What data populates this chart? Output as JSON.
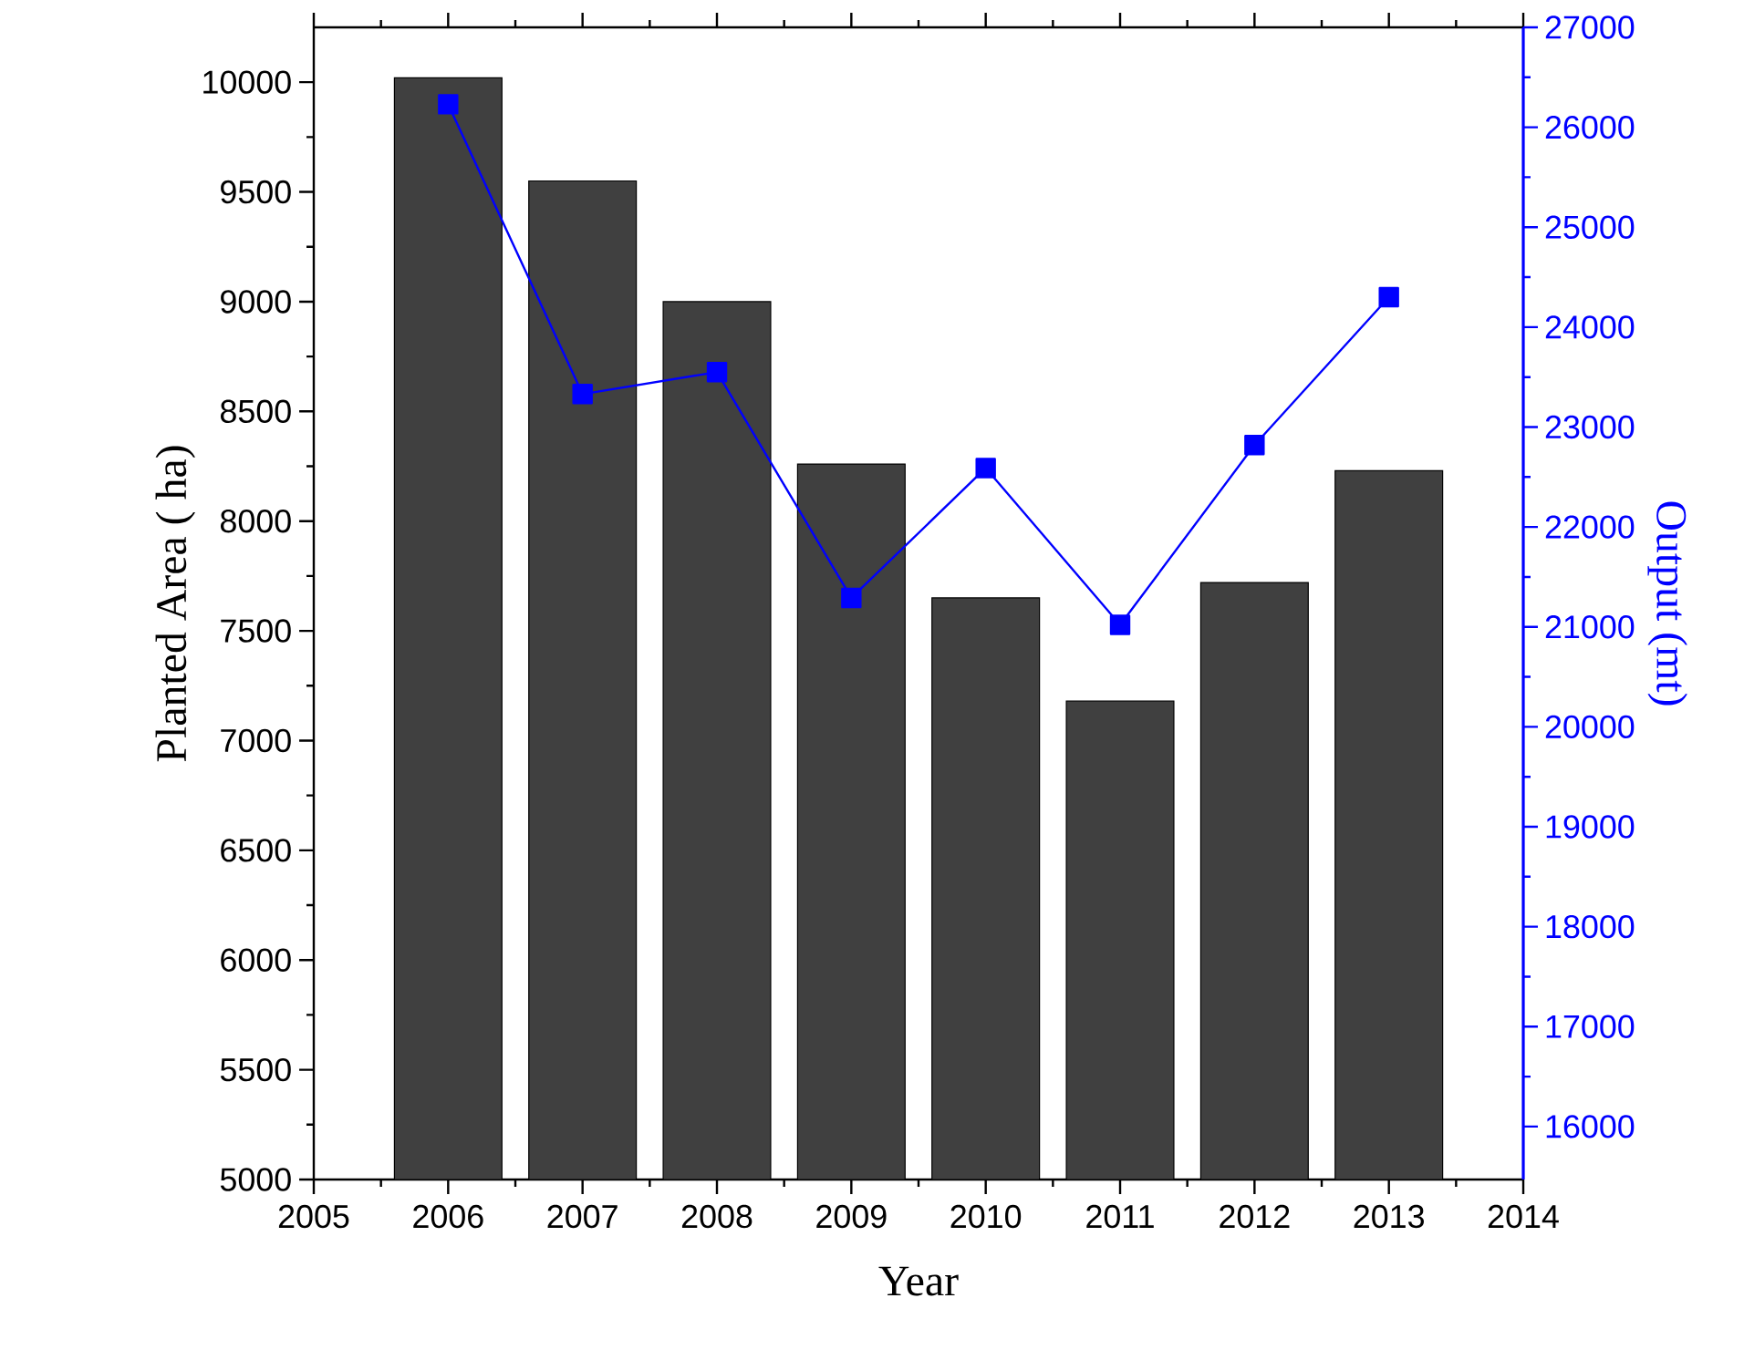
{
  "chart_data": {
    "type": "bar",
    "xlabel": "Year",
    "ylabel": "Planted Area ( ha)",
    "y2label": "Output (mt)",
    "x": [
      2006,
      2007,
      2008,
      2009,
      2010,
      2011,
      2012,
      2013
    ],
    "series": [
      {
        "color": "#404040",
        "values": [
          10020,
          9550,
          9000,
          8260,
          7650,
          7180,
          7720,
          8230
        ]
      },
      {
        "type": "line",
        "axis": "y2",
        "color": "#0000ff",
        "marker": "square",
        "line_style": "solid",
        "values": [
          26230,
          23330,
          23550,
          21290,
          22590,
          21020,
          22820,
          24300
        ]
      }
    ],
    "xlim": [
      2005,
      2014
    ],
    "xticks": [
      2005,
      2006,
      2007,
      2008,
      2009,
      2010,
      2011,
      2012,
      2013,
      2014
    ],
    "ylim": [
      5000,
      10250
    ],
    "yticks": [
      5000,
      5500,
      6000,
      6500,
      7000,
      7500,
      8000,
      8500,
      9000,
      9500,
      10000
    ],
    "y2lim": [
      15470,
      27000
    ],
    "y2ticks": [
      16000,
      17000,
      18000,
      19000,
      20000,
      21000,
      22000,
      23000,
      24000,
      25000,
      26000,
      27000
    ],
    "grid": false
  }
}
